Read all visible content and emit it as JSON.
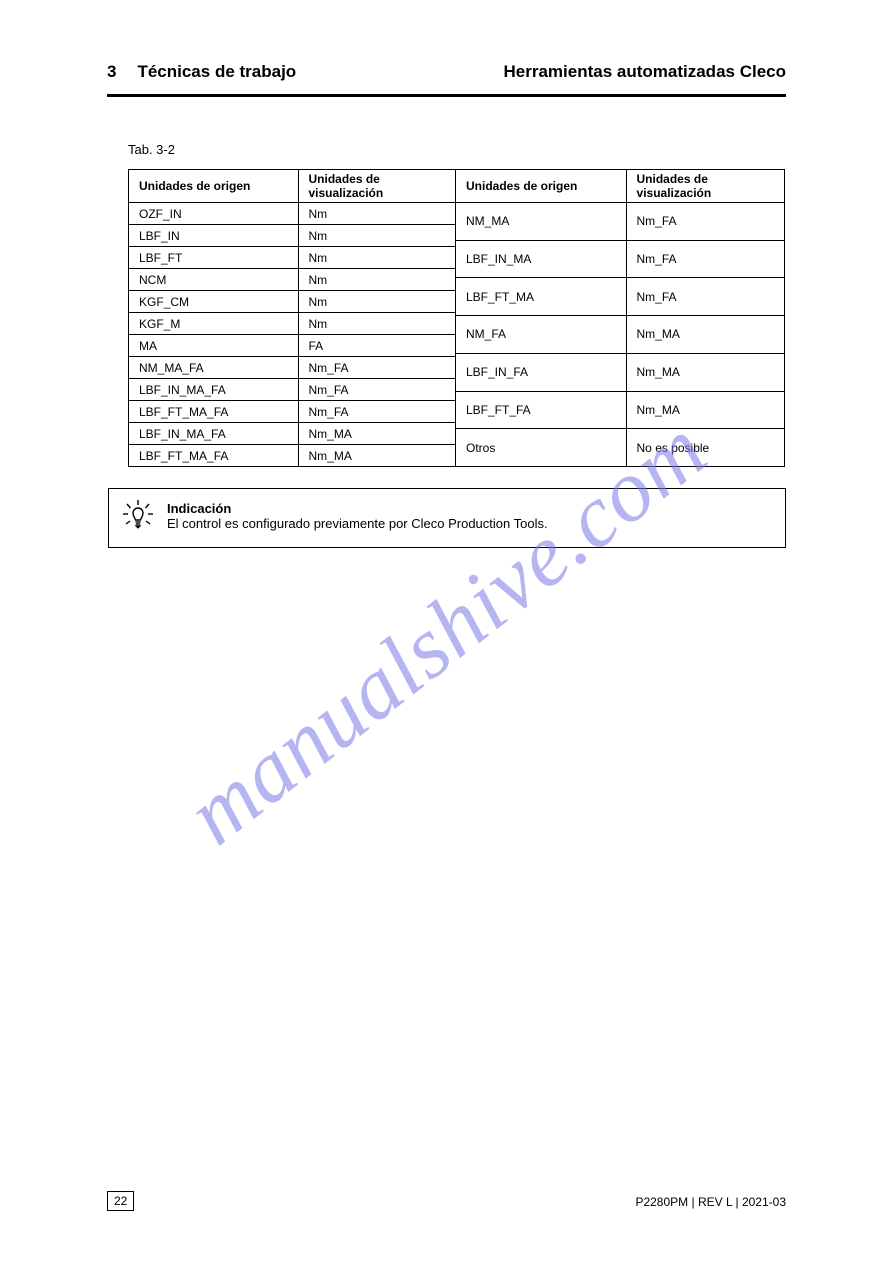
{
  "header": {
    "section_number": "3",
    "section_title": "Técnicas de trabajo",
    "doc_title": "Herramientas automatizadas Cleco"
  },
  "table": {
    "caption": "Tab. 3-2",
    "columns": [
      "Unidades de origen",
      "Unidades de visualización"
    ],
    "left_rows": [
      [
        "OZF_IN",
        "Nm"
      ],
      [
        "LBF_IN",
        "Nm"
      ],
      [
        "LBF_FT",
        "Nm"
      ],
      [
        "NCM",
        "Nm"
      ],
      [
        "KGF_CM",
        "Nm"
      ],
      [
        "KGF_M",
        "Nm"
      ],
      [
        "MA",
        "FA"
      ],
      [
        "NM_MA_FA",
        "Nm_FA"
      ],
      [
        "LBF_IN_MA_FA",
        "Nm_FA"
      ],
      [
        "LBF_FT_MA_FA",
        "Nm_FA"
      ],
      [
        "LBF_IN_MA_FA",
        "Nm_MA"
      ],
      [
        "LBF_FT_MA_FA",
        "Nm_MA"
      ]
    ],
    "right_rows": [
      [
        "NM_MA",
        "Nm_FA"
      ],
      [
        "LBF_IN_MA",
        "Nm_FA"
      ],
      [
        "LBF_FT_MA",
        "Nm_FA"
      ],
      [
        "NM_FA",
        "Nm_MA"
      ],
      [
        "LBF_IN_FA",
        "Nm_MA"
      ],
      [
        "LBF_FT_FA",
        "Nm_MA"
      ],
      [
        "Otros",
        "No es posible"
      ]
    ]
  },
  "hint": {
    "label": "Indicación",
    "text": "El control es configurado previamente por Cleco Production Tools."
  },
  "watermark": "manualshive.com",
  "footer": {
    "page": "22",
    "doc_meta": "P2280PM | REV L | 2021-03"
  },
  "style": {
    "border_color": "#000000",
    "bg_color": "#ffffff",
    "watermark_color": "rgba(120,120,230,0.55)",
    "font_body_pt": 13,
    "font_table_pt": 12,
    "font_header_pt": 17
  }
}
